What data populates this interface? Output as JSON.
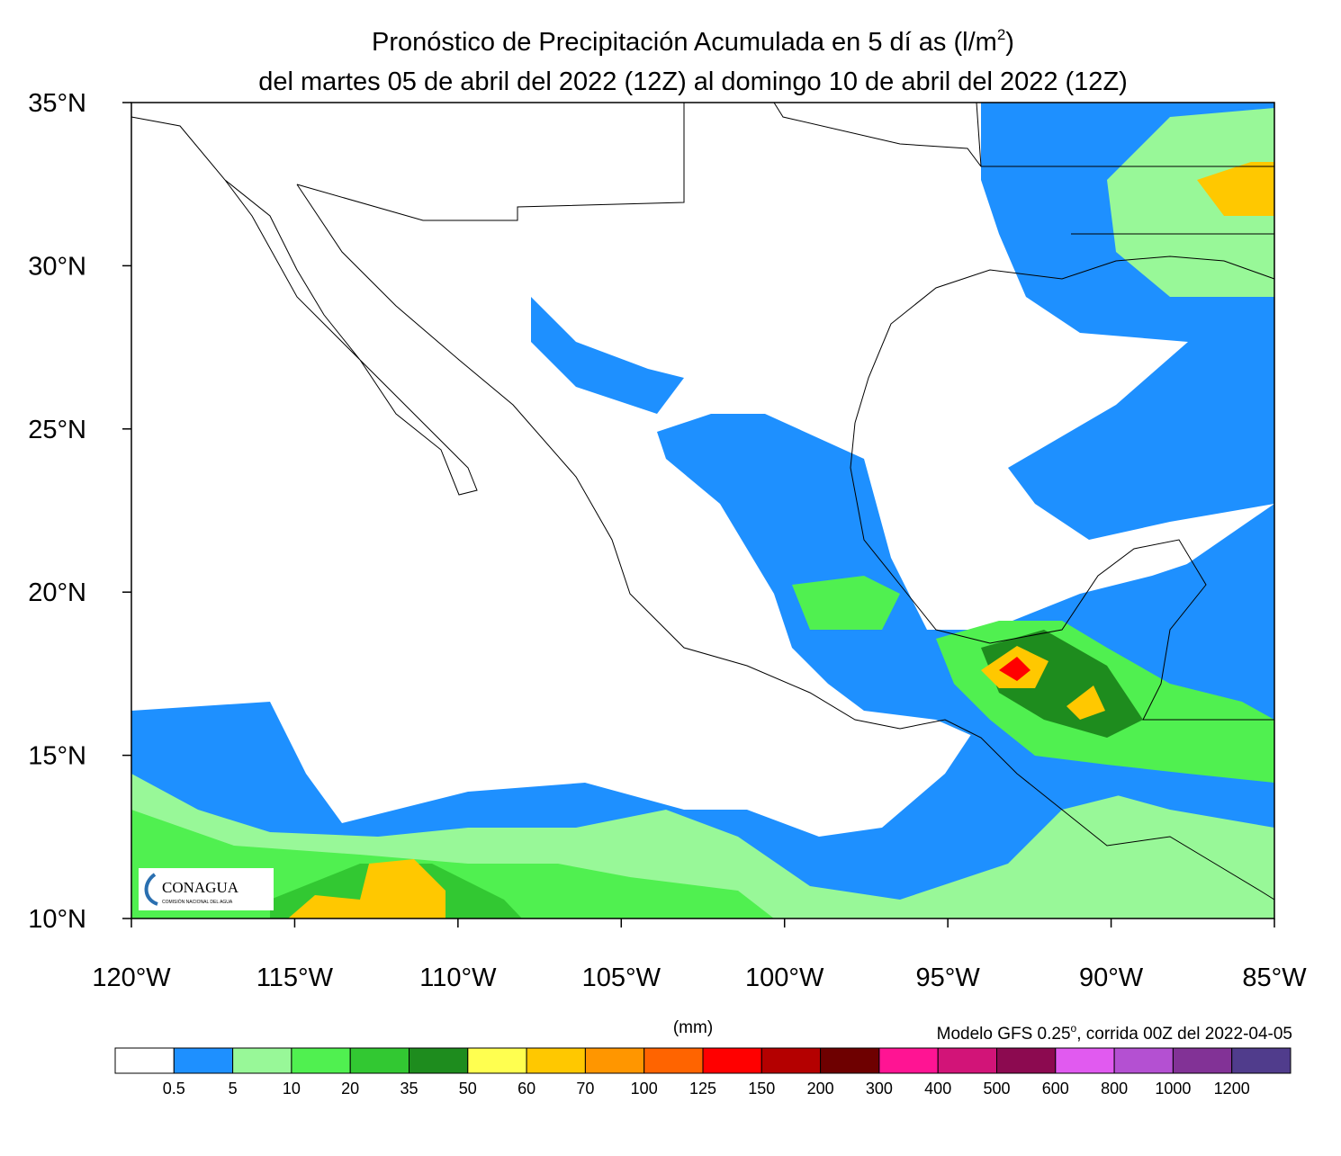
{
  "title": {
    "line1": "Pronóstico de Precipitación Acumulada en 5 dí as (l/m",
    "line1_superscript": "2",
    "line1_end": ")",
    "line2": "del martes 05 de abril del 2022 (12Z) al domingo  10 de abril del 2022 (12Z)"
  },
  "map": {
    "lonlim": [
      -120,
      -85
    ],
    "latlim": [
      10,
      35
    ],
    "lat_ticks": [
      {
        "value": 35,
        "label": "35°N"
      },
      {
        "value": 30,
        "label": "30°N"
      },
      {
        "value": 25,
        "label": "25°N"
      },
      {
        "value": 20,
        "label": "20°N"
      },
      {
        "value": 15,
        "label": "15°N"
      },
      {
        "value": 10,
        "label": "10°N"
      }
    ],
    "lon_ticks": [
      {
        "value": -120,
        "label": "120°W"
      },
      {
        "value": -115,
        "label": "115°W"
      },
      {
        "value": -110,
        "label": "110°W"
      },
      {
        "value": -105,
        "label": "105°W"
      },
      {
        "value": -100,
        "label": "100°W"
      },
      {
        "value": -95,
        "label": "95°W"
      },
      {
        "value": -90,
        "label": "90°W"
      },
      {
        "value": -85,
        "label": "85°W"
      }
    ]
  },
  "logo": {
    "name": "CONAGUA",
    "subtitle": "COMISIÓN NACIONAL DEL AGUA"
  },
  "legend": {
    "units": "(mm)",
    "note": "Modelo GFS 0.25",
    "note_superscript": "o",
    "note_end": ", corrida 00Z del 2022-04-05",
    "levels": [
      0.5,
      5,
      10,
      20,
      35,
      50,
      60,
      70,
      100,
      125,
      150,
      200,
      300,
      400,
      500,
      600,
      800,
      1000,
      1200
    ],
    "colors": [
      "#ffffff",
      "#1e90ff",
      "#98f898",
      "#50f050",
      "#32c832",
      "#1e8c1e",
      "#ffff50",
      "#ffc800",
      "#ff9600",
      "#ff6400",
      "#ff0000",
      "#b40000",
      "#6e0000",
      "#ff1493",
      "#d21478",
      "#8c0a50",
      "#e15af0",
      "#b450d2",
      "#823296",
      "#503c8c"
    ]
  }
}
